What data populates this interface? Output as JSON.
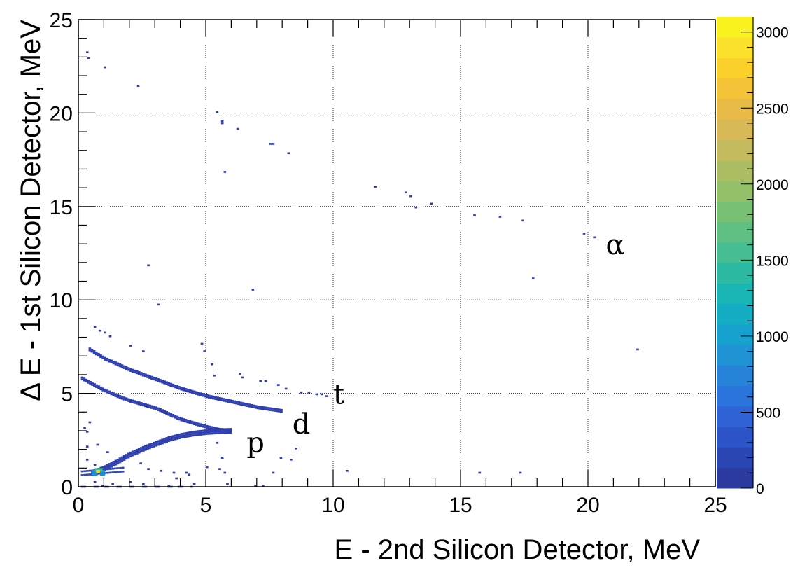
{
  "chart_data": {
    "type": "heatmap",
    "xlabel": "E - 2nd Silicon Detector, MeV",
    "ylabel": "Δ E - 1st Silicon Detector, MeV",
    "xlim": [
      0,
      25
    ],
    "ylim": [
      0,
      25
    ],
    "x_ticks": [
      "0",
      "5",
      "10",
      "15",
      "20",
      "25"
    ],
    "y_ticks": [
      "0",
      "5",
      "10",
      "15",
      "20",
      "25"
    ],
    "grid": true,
    "colorbar": {
      "range": [
        0,
        3100
      ],
      "ticks": [
        "0",
        "500",
        "1000",
        "1500",
        "2000",
        "2500",
        "3000"
      ],
      "colors": [
        "#2a3a9e",
        "#2b47b4",
        "#2d55c8",
        "#2f63d6",
        "#2b74db",
        "#2683d8",
        "#1f93d4",
        "#17a1cf",
        "#14adc4",
        "#1ab5b5",
        "#2cbaa5",
        "#46bd93",
        "#5fbf82",
        "#78c074",
        "#94c06a",
        "#adbd63",
        "#c4ba5e",
        "#d8b857",
        "#e8bb48",
        "#f5c337",
        "#fbd02b",
        "#fbe02c",
        "#f9f21e"
      ]
    },
    "annotations": [
      {
        "text": "α",
        "x": 20.7,
        "y": 12.9
      },
      {
        "text": "t",
        "x": 10.0,
        "y": 4.9
      },
      {
        "text": "d",
        "x": 8.4,
        "y": 3.3
      },
      {
        "text": "p",
        "x": 6.6,
        "y": 2.3
      }
    ],
    "bands": [
      {
        "particle": "p",
        "points": [
          [
            0.5,
            0.78
          ],
          [
            1.0,
            1.05
          ],
          [
            1.5,
            1.4
          ],
          [
            2.0,
            1.78
          ],
          [
            2.5,
            2.08
          ],
          [
            3.0,
            2.35
          ],
          [
            3.5,
            2.6
          ],
          [
            4.0,
            2.78
          ],
          [
            4.5,
            2.9
          ],
          [
            5.0,
            2.98
          ],
          [
            5.5,
            3.02
          ],
          [
            6.0,
            3.05
          ]
        ],
        "width": 0.18
      },
      {
        "particle": "d",
        "points": [
          [
            0.1,
            5.85
          ],
          [
            0.5,
            5.55
          ],
          [
            1.0,
            5.2
          ],
          [
            1.5,
            4.9
          ],
          [
            2.0,
            4.65
          ],
          [
            2.5,
            4.45
          ],
          [
            3.0,
            4.25
          ],
          [
            3.5,
            3.95
          ],
          [
            4.0,
            3.65
          ],
          [
            4.5,
            3.45
          ],
          [
            5.0,
            3.25
          ],
          [
            5.5,
            3.1
          ],
          [
            6.0,
            3.05
          ]
        ],
        "width": 0.1
      },
      {
        "particle": "t",
        "points": [
          [
            0.4,
            7.4
          ],
          [
            1.0,
            6.9
          ],
          [
            1.5,
            6.6
          ],
          [
            2.0,
            6.3
          ],
          [
            2.5,
            6.05
          ],
          [
            3.0,
            5.8
          ],
          [
            3.5,
            5.55
          ],
          [
            4.0,
            5.3
          ],
          [
            4.5,
            5.1
          ],
          [
            5.0,
            4.9
          ],
          [
            5.5,
            4.75
          ],
          [
            6.0,
            4.6
          ],
          [
            6.5,
            4.45
          ],
          [
            7.0,
            4.3
          ],
          [
            7.5,
            4.2
          ],
          [
            8.0,
            4.1
          ]
        ],
        "width": 0.08
      }
    ],
    "hotspot": {
      "x": 0.75,
      "y": 0.8
    },
    "points": [
      [
        0.3,
        23.3
      ],
      [
        0.35,
        23.0
      ],
      [
        1.0,
        22.5
      ],
      [
        2.3,
        21.5
      ],
      [
        5.4,
        20.1
      ],
      [
        5.6,
        19.6
      ],
      [
        5.6,
        19.5
      ],
      [
        6.2,
        19.2
      ],
      [
        7.5,
        18.4
      ],
      [
        7.6,
        18.4
      ],
      [
        8.2,
        17.9
      ],
      [
        5.7,
        16.9
      ],
      [
        11.6,
        16.1
      ],
      [
        12.8,
        15.8
      ],
      [
        13.0,
        15.6
      ],
      [
        13.2,
        15.0
      ],
      [
        13.8,
        15.2
      ],
      [
        15.5,
        14.6
      ],
      [
        16.5,
        14.5
      ],
      [
        17.4,
        14.3
      ],
      [
        19.8,
        13.6
      ],
      [
        20.2,
        13.4
      ],
      [
        17.8,
        11.2
      ],
      [
        21.9,
        7.4
      ],
      [
        2.7,
        11.9
      ],
      [
        6.8,
        10.6
      ],
      [
        3.1,
        9.8
      ],
      [
        0.6,
        8.6
      ],
      [
        0.8,
        8.4
      ],
      [
        1.0,
        8.3
      ],
      [
        1.2,
        8.1
      ],
      [
        2.0,
        7.6
      ],
      [
        2.5,
        7.3
      ],
      [
        4.8,
        7.7
      ],
      [
        4.9,
        7.3
      ],
      [
        5.2,
        6.6
      ],
      [
        5.3,
        6.0
      ],
      [
        6.3,
        6.1
      ],
      [
        6.4,
        5.9
      ],
      [
        7.1,
        5.7
      ],
      [
        7.3,
        5.7
      ],
      [
        7.8,
        5.5
      ],
      [
        8.1,
        5.3
      ],
      [
        8.7,
        5.1
      ],
      [
        9.0,
        5.1
      ],
      [
        9.3,
        5.0
      ],
      [
        9.5,
        5.0
      ],
      [
        9.7,
        4.9
      ],
      [
        10.5,
        0.9
      ],
      [
        15.7,
        0.8
      ],
      [
        17.3,
        0.8
      ],
      [
        0.3,
        1.5
      ],
      [
        0.3,
        2.2
      ],
      [
        0.3,
        3.0
      ],
      [
        0.4,
        3.5
      ],
      [
        0.2,
        3.2
      ],
      [
        0.7,
        2.3
      ],
      [
        1.1,
        1.9
      ],
      [
        0.6,
        1.2
      ],
      [
        2.4,
        1.3
      ],
      [
        2.7,
        1.0
      ],
      [
        3.2,
        0.9
      ],
      [
        3.7,
        0.8
      ],
      [
        4.2,
        0.8
      ],
      [
        4.3,
        0.7
      ],
      [
        5.4,
        2.4
      ],
      [
        5.6,
        1.6
      ],
      [
        5.0,
        1.1
      ],
      [
        5.5,
        1.0
      ],
      [
        7.6,
        0.8
      ],
      [
        7.9,
        1.6
      ],
      [
        8.3,
        1.5
      ],
      [
        8.5,
        2.1
      ],
      [
        5.7,
        0.8
      ],
      [
        3.8,
        0.5
      ],
      [
        2.0,
        0.3
      ],
      [
        1.3,
        0.2
      ],
      [
        0.6,
        0.3
      ],
      [
        0.9,
        0.1
      ],
      [
        2.5,
        0.2
      ],
      [
        3.5,
        0.1
      ],
      [
        4.5,
        0.2
      ],
      [
        5.8,
        0.2
      ],
      [
        6.9,
        0.1
      ],
      [
        7.2,
        0.1
      ]
    ]
  }
}
